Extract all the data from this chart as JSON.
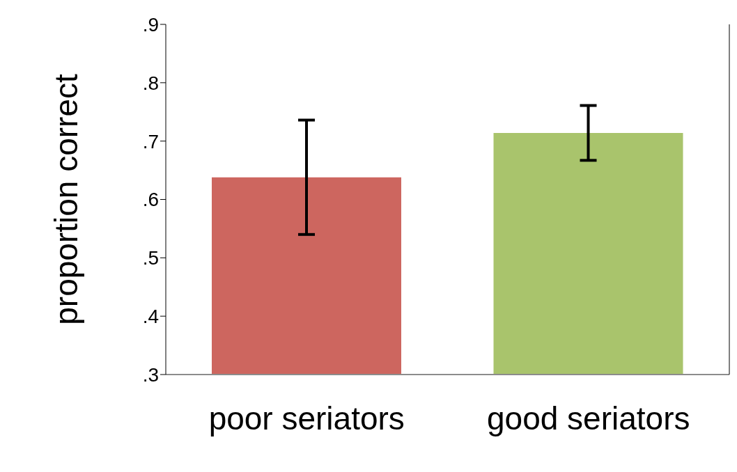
{
  "chart_data": {
    "type": "bar",
    "ylabel": "proportion correct",
    "categories": [
      "poor seriators",
      "good seriators"
    ],
    "values": [
      0.638,
      0.714
    ],
    "errors": [
      0.098,
      0.047
    ],
    "colors": [
      "#cd665f",
      "#a9c46c"
    ],
    "ylim": [
      0.3,
      0.9
    ],
    "yticks": [
      {
        "value": 0.3,
        "label": ".3"
      },
      {
        "value": 0.4,
        "label": ".4"
      },
      {
        "value": 0.5,
        "label": ".5"
      },
      {
        "value": 0.6,
        "label": ".6"
      },
      {
        "value": 0.7,
        "label": ".7"
      },
      {
        "value": 0.8,
        "label": ".8"
      },
      {
        "value": 0.9,
        "label": ".9"
      }
    ]
  }
}
